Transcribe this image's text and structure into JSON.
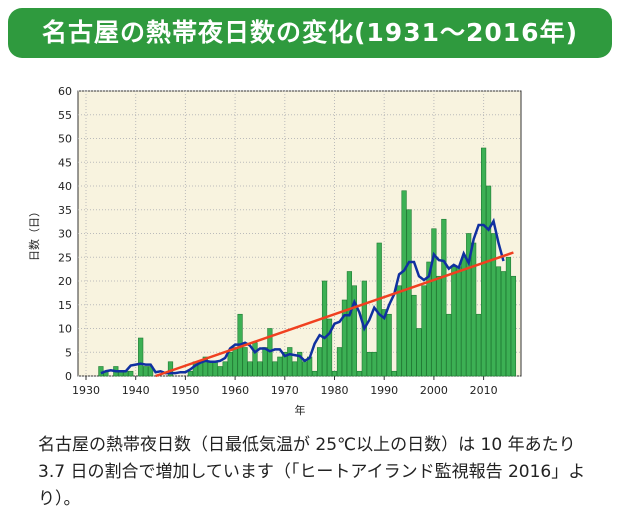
{
  "title": "名古屋の熱帯夜日数の変化(1931～2016年)",
  "caption": "名古屋の熱帯夜日数（日最低気温が 25℃以上の日数）は 10 年あたり 3.7 日の割合で増加しています（「ヒートアイランド監視報告 2016」より）。",
  "chart_data": {
    "type": "bar",
    "xlabel": "年",
    "ylabel": "日数（日）",
    "xlim": [
      1930,
      2017
    ],
    "ylim": [
      0,
      60
    ],
    "xticks": [
      1930,
      1940,
      1950,
      1960,
      1970,
      1980,
      1990,
      2000,
      2010
    ],
    "yticks": [
      0,
      5,
      10,
      15,
      20,
      25,
      30,
      35,
      40,
      45,
      50,
      55,
      60
    ],
    "grid": true,
    "colors": {
      "bar": "#3cb054",
      "bar_edge": "#1f7a33",
      "moving_average": "#1030a0",
      "trend": "#f04020",
      "background": "#f8f3df"
    },
    "years_start": 1931,
    "values": [
      0,
      0,
      2,
      1,
      0,
      2,
      1,
      1,
      1,
      0,
      8,
      2,
      2,
      0,
      0,
      0,
      3,
      0,
      0,
      0,
      1,
      3,
      3,
      4,
      3,
      3,
      2,
      3,
      5,
      6,
      13,
      6,
      3,
      7,
      3,
      6,
      10,
      3,
      4,
      5,
      6,
      3,
      5,
      3,
      4,
      1,
      6,
      20,
      12,
      1,
      6,
      16,
      22,
      19,
      1,
      20,
      5,
      5,
      28,
      14,
      13,
      1,
      19,
      39,
      35,
      17,
      10,
      19,
      24,
      31,
      21,
      33,
      13,
      23,
      23,
      25,
      30,
      28,
      13,
      48,
      40,
      30,
      23,
      22,
      25,
      21
    ],
    "moving_average_window": 5,
    "trend": {
      "start_year": 1944,
      "end_year": 2016,
      "start_value": 0,
      "end_value": 26,
      "rate_per_decade": 3.7
    }
  }
}
